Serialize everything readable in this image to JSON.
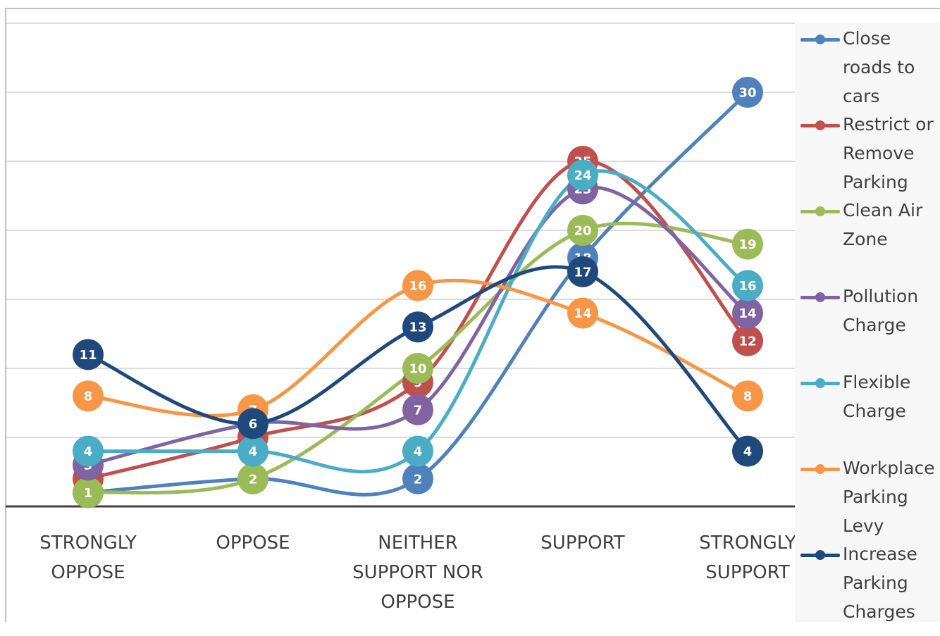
{
  "chart_data": {
    "type": "line",
    "title": "",
    "xlabel": "",
    "ylabel": "",
    "ylim": [
      0,
      35
    ],
    "grid": true,
    "legend_position": "right",
    "categories": [
      "STRONGLY OPPOSE",
      "OPPOSE",
      "NEITHER SUPPORT NOR OPPOSE",
      "SUPPORT",
      "STRONGLY SUPPORT"
    ],
    "series": [
      {
        "name": "Close roads to cars",
        "color": "#4f81bd",
        "values": [
          1,
          2,
          2,
          18,
          30
        ]
      },
      {
        "name": "Restrict or Remove Parking",
        "color": "#c0504d",
        "values": [
          2,
          5,
          9,
          25,
          12
        ]
      },
      {
        "name": "Clean Air Zone",
        "color": "#9bbb59",
        "values": [
          1,
          2,
          10,
          20,
          19
        ]
      },
      {
        "name": "Pollution Charge",
        "color": "#8064a2",
        "values": [
          3,
          6,
          7,
          23,
          14
        ]
      },
      {
        "name": "Flexible Charge",
        "color": "#4bacc6",
        "values": [
          4,
          4,
          4,
          24,
          16
        ]
      },
      {
        "name": "Workplace Parking Levy",
        "color": "#f79646",
        "values": [
          8,
          7,
          16,
          14,
          8
        ]
      },
      {
        "name": "Increase Parking Charges",
        "color": "#1f497d",
        "values": [
          11,
          6,
          13,
          17,
          4
        ]
      }
    ]
  }
}
